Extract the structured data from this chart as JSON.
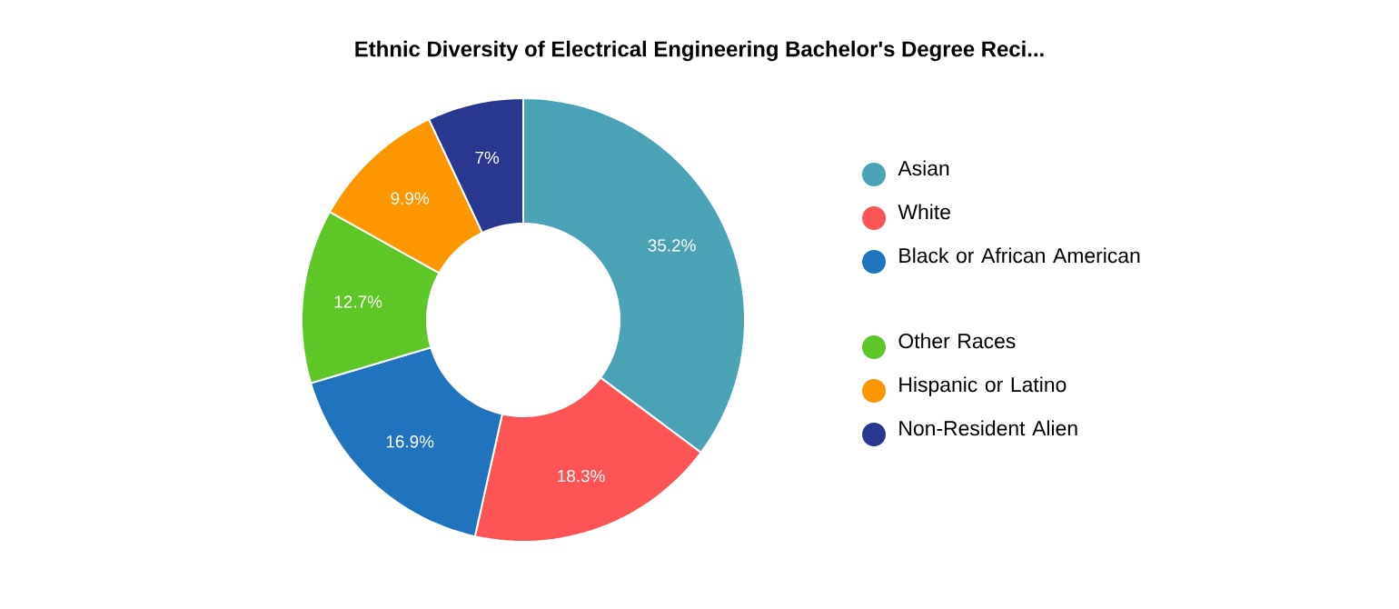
{
  "chart_data": {
    "type": "donut",
    "title": "Ethnic Diversity of Electrical Engineering Bachelor's Degree Reci...",
    "categories": [
      "Asian",
      "White",
      "Black or African American",
      "Other Races",
      "Hispanic or Latino",
      "Non-Resident Alien"
    ],
    "values": [
      35.2,
      18.3,
      16.9,
      12.7,
      9.9,
      7
    ],
    "value_labels": [
      "35.2%",
      "18.3%",
      "16.9%",
      "12.7%",
      "9.9%",
      "7%"
    ],
    "colors": [
      "#4aa3b5",
      "#fe5454",
      "#1f74bd",
      "#5cc726",
      "#fe9600",
      "#2a3791"
    ],
    "legend": "right"
  }
}
